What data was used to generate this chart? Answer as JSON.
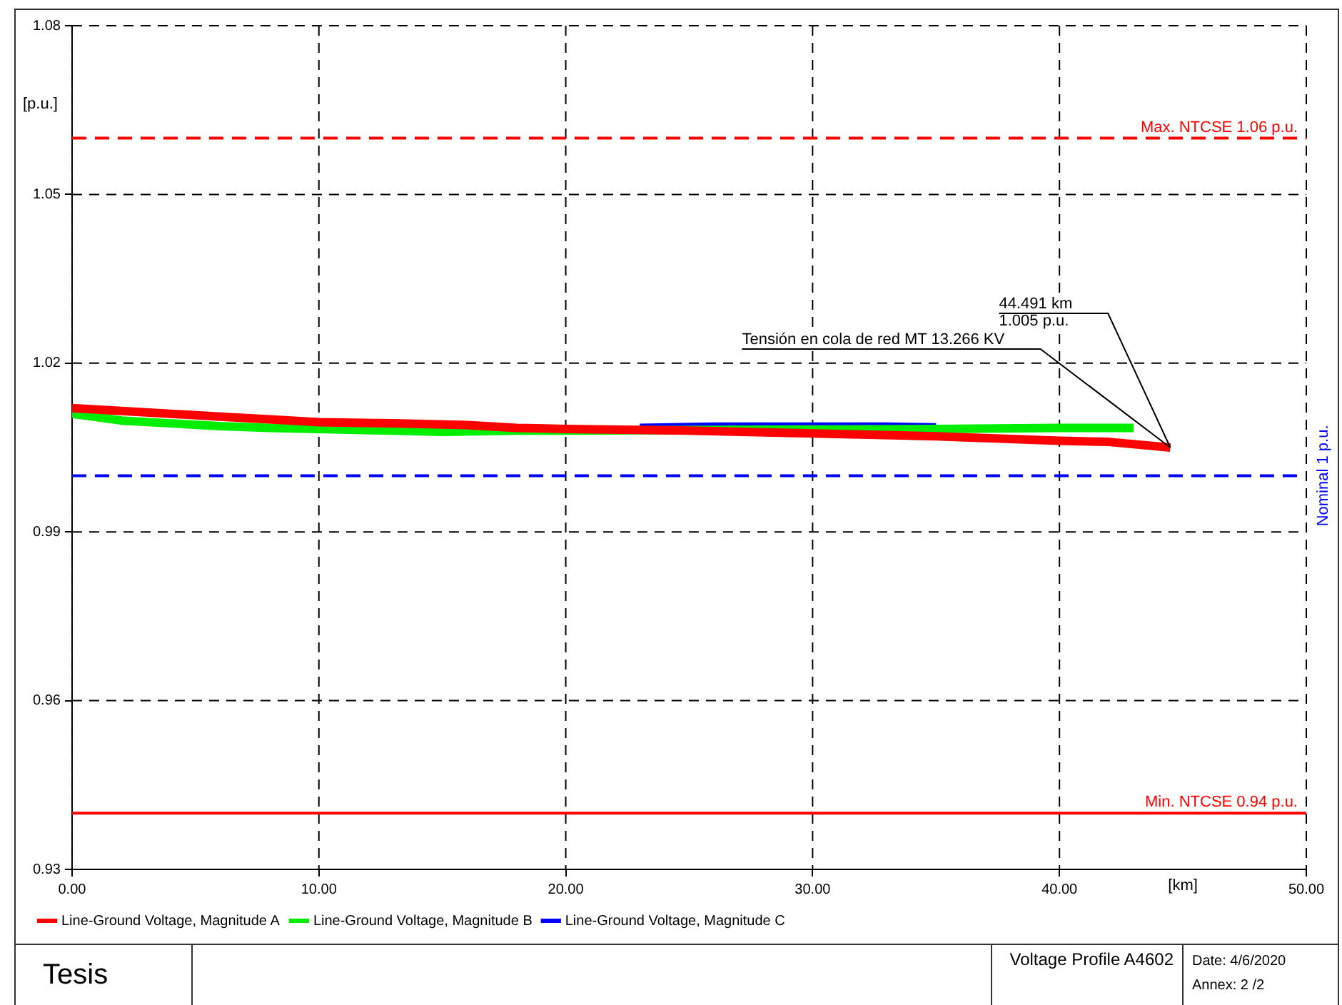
{
  "chart_data": {
    "type": "line",
    "xlabel": "[km]",
    "ylabel": "[p.u.]",
    "xlim": [
      0,
      50
    ],
    "xticks": [
      {
        "value": 0,
        "label": "0.00"
      },
      {
        "value": 10,
        "label": "10.00"
      },
      {
        "value": 20,
        "label": "20.00"
      },
      {
        "value": 30,
        "label": "30.00"
      },
      {
        "value": 40,
        "label": "40.00"
      },
      {
        "value": 50,
        "label": "50.00"
      }
    ],
    "ylim": [
      0.93,
      1.08
    ],
    "yticks": [
      0.93,
      0.96,
      0.99,
      1.02,
      1.05,
      1.08
    ],
    "grid": true,
    "legend": "bottom",
    "marker": "none",
    "line_style": "solid",
    "series": [
      {
        "name": "Line-Ground Voltage, Magnitude A",
        "color": "#ff0000",
        "x": [
          0,
          2,
          4,
          6,
          8,
          10,
          13,
          16,
          18,
          20,
          25,
          30,
          35,
          40,
          42,
          44.491
        ],
        "values": [
          1.012,
          1.0115,
          1.011,
          1.0105,
          1.01,
          1.0095,
          1.0093,
          1.009,
          1.0085,
          1.0083,
          1.008,
          1.0075,
          1.007,
          1.0062,
          1.006,
          1.005
        ]
      },
      {
        "name": "Line-Ground Voltage, Magnitude B",
        "color": "#00ee00",
        "x": [
          0,
          2,
          4,
          6,
          8,
          10,
          13,
          15,
          18,
          20,
          30,
          35,
          40,
          43
        ],
        "values": [
          1.011,
          1.0098,
          1.0093,
          1.0088,
          1.0085,
          1.0083,
          1.008,
          1.0078,
          1.008,
          1.008,
          1.0082,
          1.0083,
          1.0085,
          1.0085
        ]
      },
      {
        "name": "Line-Ground Voltage, Magnitude C",
        "color": "#0000ff",
        "x": [
          23,
          26,
          30,
          33,
          35
        ],
        "values": [
          1.0085,
          1.0087,
          1.0087,
          1.0087,
          1.0086
        ]
      }
    ],
    "ref_lines": [
      {
        "axis": "y",
        "value": 1.06,
        "label": "Max. NTCSE 1.06 p.u.",
        "color": "#ff0000",
        "line_style": "dashed"
      },
      {
        "axis": "y",
        "value": 1.0,
        "label": "Nominal 1 p.u.",
        "color": "#0000ff",
        "line_style": "dashed"
      },
      {
        "axis": "y",
        "value": 0.94,
        "label": "Min. NTCSE 0.94 p.u.",
        "color": "#ff0000",
        "line_style": "solid"
      }
    ],
    "annotations": [
      {
        "text": "Tensión en cola de red MT 13.266 KV",
        "x": 44.491,
        "y": 1.005
      },
      {
        "text": "44.491 km\n1.005 p.u.",
        "x": 44.491,
        "y": 1.005
      },
      "Tesis",
      "Voltage Profile A4602",
      "Date: 4/6/2020\nAnnex: 2 /2"
    ]
  }
}
